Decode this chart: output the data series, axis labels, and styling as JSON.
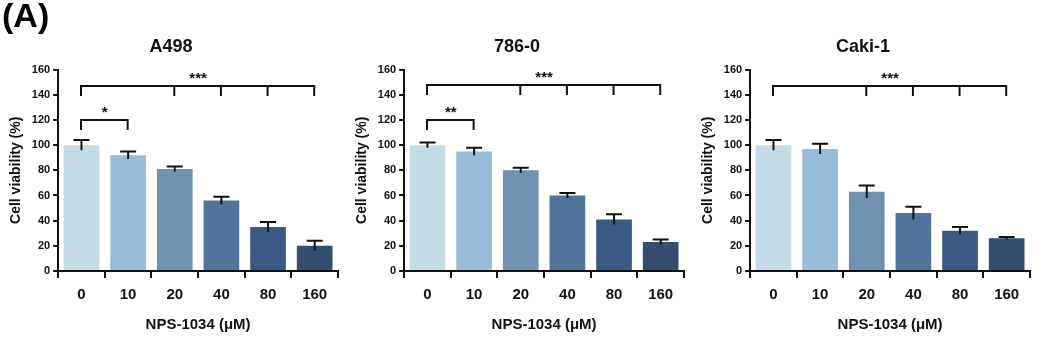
{
  "chart_data": [
    {
      "type": "bar",
      "title": "A498",
      "xlabel": "NPS-1034 (μM)",
      "ylabel": "Cell viability (%)",
      "categories": [
        "0",
        "10",
        "20",
        "40",
        "80",
        "160"
      ],
      "values": [
        100,
        92,
        81,
        56,
        35,
        20
      ],
      "errors": [
        4,
        3,
        2,
        3,
        4,
        4
      ],
      "colors": [
        "#c4dce8",
        "#97bdd8",
        "#6f92b2",
        "#52739a",
        "#3b5a83",
        "#344e70"
      ],
      "ylim": [
        0,
        160
      ],
      "yticks": [
        0,
        20,
        40,
        60,
        80,
        100,
        120,
        140,
        160
      ],
      "grid": false,
      "legend": false,
      "annotations": [
        "(A)",
        "*",
        "***"
      ]
    },
    {
      "type": "bar",
      "title": "786-0",
      "xlabel": "NPS-1034 (μM)",
      "ylabel": "Cell viability (%)",
      "categories": [
        "0",
        "10",
        "20",
        "40",
        "80",
        "160"
      ],
      "values": [
        100,
        95,
        80,
        60,
        41,
        23
      ],
      "errors": [
        2,
        3,
        2,
        2,
        4,
        2
      ],
      "colors": [
        "#c4dce8",
        "#97bdd8",
        "#6f92b2",
        "#52739a",
        "#3b5a83",
        "#344e70"
      ],
      "ylim": [
        0,
        160
      ],
      "yticks": [
        0,
        20,
        40,
        60,
        80,
        100,
        120,
        140,
        160
      ],
      "grid": false,
      "legend": false,
      "annotations": [
        "**",
        "***"
      ]
    },
    {
      "type": "bar",
      "title": "Caki-1",
      "xlabel": "NPS-1034 (μM)",
      "ylabel": "Cell viability (%)",
      "categories": [
        "0",
        "10",
        "20",
        "40",
        "80",
        "160"
      ],
      "values": [
        100,
        97,
        63,
        46,
        32,
        26
      ],
      "errors": [
        4,
        4,
        5,
        5,
        3,
        1
      ],
      "colors": [
        "#c4dce8",
        "#97bdd8",
        "#6f92b2",
        "#52739a",
        "#3b5a83",
        "#344e70"
      ],
      "ylim": [
        0,
        160
      ],
      "yticks": [
        0,
        20,
        40,
        60,
        80,
        100,
        120,
        140,
        160
      ],
      "grid": false,
      "legend": false,
      "annotations": [
        "***"
      ]
    }
  ]
}
